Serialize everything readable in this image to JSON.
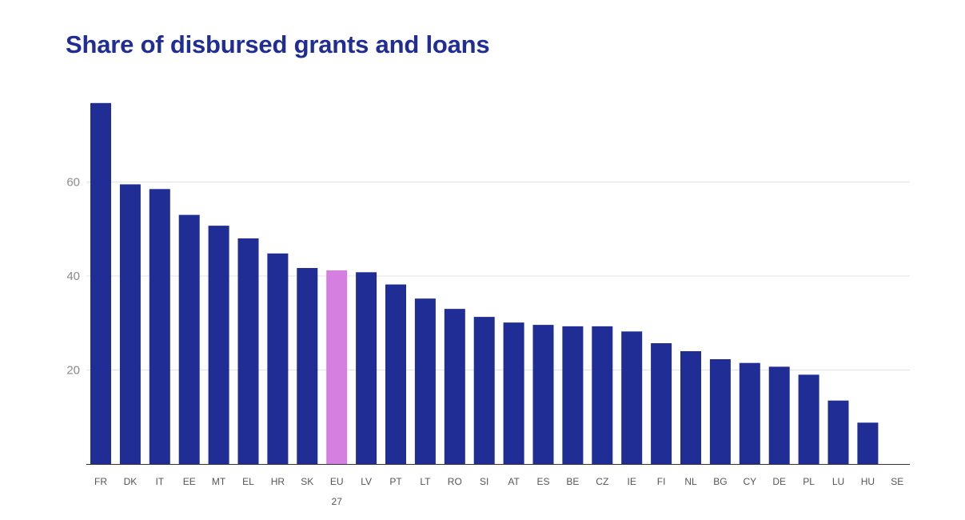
{
  "chart_data": {
    "type": "bar",
    "title": "Share of disbursed grants and loans",
    "xlabel": "",
    "ylabel": "",
    "categories": [
      "FR",
      "DK",
      "IT",
      "EE",
      "MT",
      "EL",
      "HR",
      "SK",
      "EU 27",
      "LV",
      "PT",
      "LT",
      "RO",
      "SI",
      "AT",
      "ES",
      "BE",
      "CZ",
      "IE",
      "FI",
      "NL",
      "BG",
      "CY",
      "DE",
      "PL",
      "LU",
      "HU",
      "SE"
    ],
    "values": [
      76.8,
      59.5,
      58.5,
      53.0,
      50.7,
      48.0,
      44.8,
      41.7,
      41.2,
      40.8,
      38.2,
      35.2,
      33.0,
      31.3,
      30.1,
      29.6,
      29.3,
      29.3,
      28.2,
      25.7,
      24.0,
      22.3,
      21.5,
      20.7,
      19.0,
      13.5,
      8.8,
      0
    ],
    "highlight_category": "EU 27",
    "ylim": [
      0,
      80
    ],
    "yticks": [
      20,
      40,
      60
    ],
    "grid": true,
    "legend": "none",
    "colors": {
      "bar": "#1f2d94",
      "highlight": "#d580e0",
      "title": "#1f2d94"
    }
  }
}
